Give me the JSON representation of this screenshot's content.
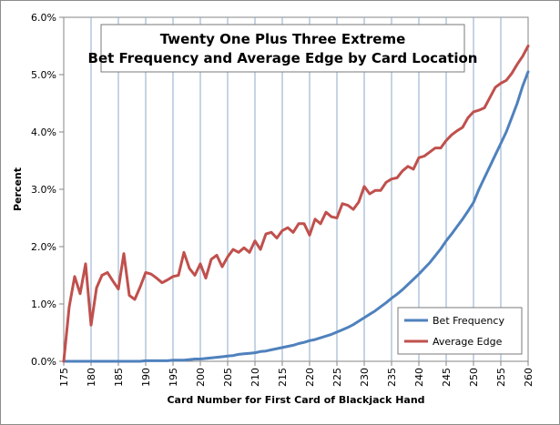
{
  "chart_data": {
    "type": "line",
    "title": [
      "Twenty One Plus Three Extreme",
      "Bet Frequency and Average Edge by Card Location"
    ],
    "xlabel": "Card Number for First Card of Blackjack  Hand",
    "ylabel": "Percent",
    "xlim": [
      175,
      260
    ],
    "ylim": [
      0,
      6
    ],
    "x_ticks": [
      175,
      180,
      185,
      190,
      195,
      200,
      205,
      210,
      215,
      220,
      225,
      230,
      235,
      240,
      245,
      250,
      255,
      260
    ],
    "y_ticks": [
      0,
      1,
      2,
      3,
      4,
      5,
      6
    ],
    "y_tick_labels": [
      "0.0%",
      "1.0%",
      "2.0%",
      "3.0%",
      "4.0%",
      "5.0%",
      "6.0%"
    ],
    "grid": "vertical",
    "legend": "bottom-right",
    "x": [
      175,
      176,
      177,
      178,
      179,
      180,
      181,
      182,
      183,
      184,
      185,
      186,
      187,
      188,
      189,
      190,
      191,
      192,
      193,
      194,
      195,
      196,
      197,
      198,
      199,
      200,
      201,
      202,
      203,
      204,
      205,
      206,
      207,
      208,
      209,
      210,
      211,
      212,
      213,
      214,
      215,
      216,
      217,
      218,
      219,
      220,
      221,
      222,
      223,
      224,
      225,
      226,
      227,
      228,
      229,
      230,
      231,
      232,
      233,
      234,
      235,
      236,
      237,
      238,
      239,
      240,
      241,
      242,
      243,
      244,
      245,
      246,
      247,
      248,
      249,
      250,
      251,
      252,
      253,
      254,
      255,
      256,
      257,
      258,
      259,
      260
    ],
    "series": [
      {
        "name": "Bet Frequency",
        "color": "#4f81bd",
        "values": [
          0,
          0,
          0,
          0,
          0,
          0,
          0,
          0,
          0,
          0,
          0,
          0,
          0,
          0,
          0,
          0.01,
          0.01,
          0.01,
          0.01,
          0.01,
          0.02,
          0.02,
          0.02,
          0.03,
          0.04,
          0.04,
          0.05,
          0.06,
          0.07,
          0.08,
          0.09,
          0.1,
          0.12,
          0.13,
          0.14,
          0.15,
          0.17,
          0.18,
          0.2,
          0.22,
          0.24,
          0.26,
          0.28,
          0.31,
          0.33,
          0.36,
          0.38,
          0.41,
          0.44,
          0.47,
          0.51,
          0.55,
          0.59,
          0.64,
          0.7,
          0.76,
          0.82,
          0.88,
          0.95,
          1.02,
          1.1,
          1.17,
          1.25,
          1.34,
          1.43,
          1.52,
          1.62,
          1.72,
          1.84,
          1.96,
          2.1,
          2.22,
          2.35,
          2.48,
          2.62,
          2.77,
          3.0,
          3.2,
          3.4,
          3.6,
          3.8,
          4.0,
          4.25,
          4.5,
          4.8,
          5.05
        ]
      },
      {
        "name": "Average Edge",
        "color": "#c0504d",
        "values": [
          0,
          0.95,
          1.48,
          1.18,
          1.7,
          0.63,
          1.28,
          1.5,
          1.55,
          1.4,
          1.26,
          1.88,
          1.15,
          1.08,
          1.3,
          1.55,
          1.52,
          1.45,
          1.37,
          1.42,
          1.48,
          1.5,
          1.9,
          1.62,
          1.5,
          1.7,
          1.45,
          1.78,
          1.85,
          1.65,
          1.82,
          1.95,
          1.9,
          1.98,
          1.9,
          2.1,
          1.95,
          2.22,
          2.25,
          2.15,
          2.28,
          2.33,
          2.25,
          2.4,
          2.4,
          2.2,
          2.48,
          2.4,
          2.6,
          2.52,
          2.5,
          2.75,
          2.72,
          2.65,
          2.78,
          3.05,
          2.92,
          2.98,
          2.98,
          3.12,
          3.18,
          3.2,
          3.32,
          3.4,
          3.35,
          3.55,
          3.58,
          3.65,
          3.72,
          3.72,
          3.85,
          3.95,
          4.02,
          4.08,
          4.25,
          4.35,
          4.38,
          4.42,
          4.6,
          4.78,
          4.85,
          4.9,
          5.02,
          5.18,
          5.32,
          5.5
        ]
      }
    ]
  }
}
